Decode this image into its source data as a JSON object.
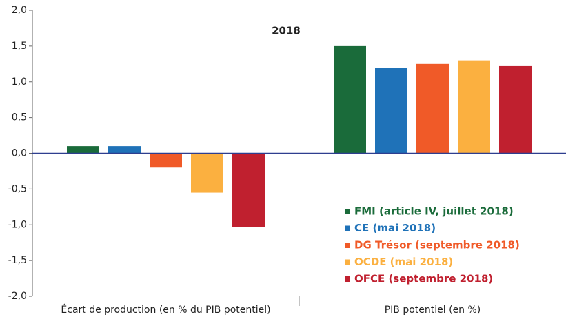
{
  "chart_data": {
    "type": "bar",
    "title": "2018",
    "categories": [
      "Écart de production  (en % du PIB potentiel)",
      "PIB potentiel (en %)"
    ],
    "series": [
      {
        "name": "FMI (article IV, juillet 2018)",
        "color": "#1a6b3a",
        "values": [
          0.1,
          1.5
        ]
      },
      {
        "name": "CE (mai 2018)",
        "color": "#1f72b8",
        "values": [
          0.1,
          1.2
        ]
      },
      {
        "name": "DG Trésor (septembre 2018)",
        "color": "#f05a28",
        "values": [
          -0.2,
          1.25
        ]
      },
      {
        "name": "OCDE (mai 2018)",
        "color": "#fbb040",
        "values": [
          -0.55,
          1.3
        ]
      },
      {
        "name": "OFCE (septembre 2018)",
        "color": "#c0202f",
        "values": [
          -1.03,
          1.22
        ]
      }
    ],
    "ylim": [
      -2,
      2
    ],
    "yticks": [
      {
        "value": -2,
        "label": "-2,0"
      },
      {
        "value": -1.5,
        "label": "-1,5"
      },
      {
        "value": -1,
        "label": "-1,0"
      },
      {
        "value": -0.5,
        "label": "-0,5"
      },
      {
        "value": 0,
        "label": "0,0"
      },
      {
        "value": 0.5,
        "label": "0,5"
      },
      {
        "value": 1,
        "label": "1,0"
      },
      {
        "value": 1.5,
        "label": "1,5"
      },
      {
        "value": 2,
        "label": "2,0"
      }
    ],
    "legend": "lower right"
  }
}
